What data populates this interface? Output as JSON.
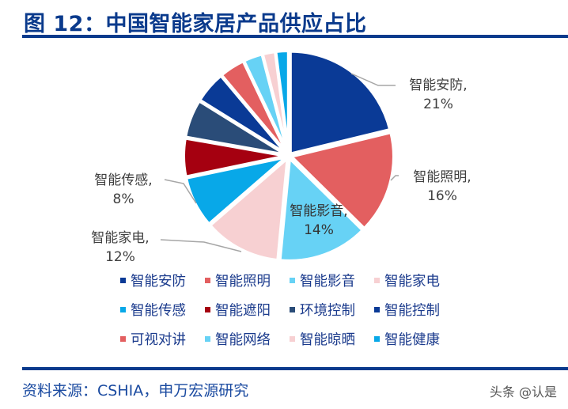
{
  "header": {
    "title": "图 12：中国智能家居产品供应占比"
  },
  "chart_data": {
    "type": "pie",
    "title": "中国智能家居产品供应占比",
    "categories": [
      "智能安防",
      "智能照明",
      "智能影音",
      "智能家电",
      "智能传感",
      "智能遮阳",
      "环境控制",
      "智能控制",
      "可视对讲",
      "智能网络",
      "智能晾晒",
      "智能健康"
    ],
    "values": [
      21,
      16,
      14,
      12,
      8,
      6,
      6,
      5,
      4,
      3,
      2,
      2
    ],
    "colors": [
      "#0a3a96",
      "#e35f60",
      "#67d2f5",
      "#f7d0d2",
      "#08a8e8",
      "#a50010",
      "#2a4c78",
      "#0a3a96",
      "#e35f60",
      "#67d2f5",
      "#f7d0d2",
      "#08a8e8"
    ],
    "data_labels": [
      {
        "name": "智能安防",
        "text": "智能安防,",
        "pct": "21%"
      },
      {
        "name": "智能照明",
        "text": "智能照明,",
        "pct": "16%"
      },
      {
        "name": "智能影音",
        "text": "智能影音,",
        "pct": "14%"
      },
      {
        "name": "智能家电",
        "text": "智能家电,",
        "pct": "12%"
      },
      {
        "name": "智能传感",
        "text": "智能传感,",
        "pct": "8%"
      }
    ],
    "legend_position": "bottom",
    "unit": "%"
  },
  "legend": {
    "rows": [
      [
        {
          "label": "智能安防",
          "color": "#0a3a96"
        },
        {
          "label": "智能照明",
          "color": "#e35f60"
        },
        {
          "label": "智能影音",
          "color": "#67d2f5"
        },
        {
          "label": "智能家电",
          "color": "#f7d0d2"
        }
      ],
      [
        {
          "label": "智能传感",
          "color": "#08a8e8"
        },
        {
          "label": "智能遮阳",
          "color": "#a50010"
        },
        {
          "label": "环境控制",
          "color": "#2a4c78"
        },
        {
          "label": "智能控制",
          "color": "#0a3a96"
        }
      ],
      [
        {
          "label": "可视对讲",
          "color": "#e35f60"
        },
        {
          "label": "智能网络",
          "color": "#67d2f5"
        },
        {
          "label": "智能晾晒",
          "color": "#f7d0d2"
        },
        {
          "label": "智能健康",
          "color": "#08a8e8"
        }
      ]
    ]
  },
  "footer": {
    "source": "资料来源：CSHIA，申万宏源研究",
    "watermark": "头条 @认是"
  }
}
